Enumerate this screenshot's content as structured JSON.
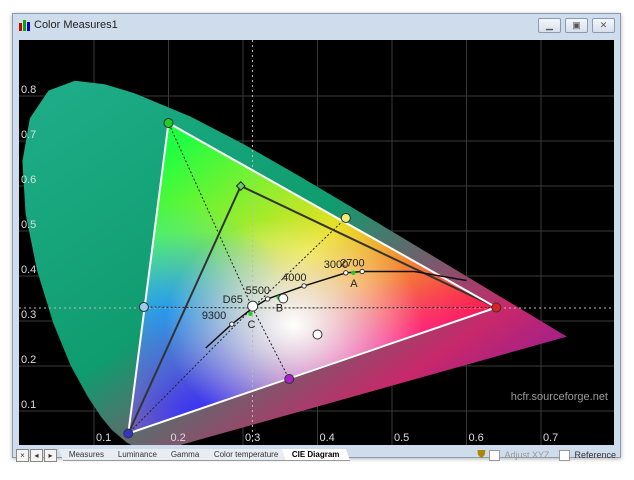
{
  "window": {
    "title": "Color Measures1",
    "controls": [
      "minimize",
      "maximize",
      "close"
    ]
  },
  "tabs": [
    {
      "label": "Measures"
    },
    {
      "label": "Luminance"
    },
    {
      "label": "Gamma"
    },
    {
      "label": "Color temperature"
    },
    {
      "label": "CIE Diagram",
      "active": true
    }
  ],
  "nav_buttons": [
    "×",
    "◂",
    "▸"
  ],
  "options": {
    "adjust_xyz": "Adjust XYZ",
    "reference": "Reference"
  },
  "watermark": "hcfr.sourceforge.net",
  "colors": {
    "background": "#000000",
    "grid": "#3a3a3a",
    "reference_gamut": "#ffffff",
    "measured_gamut": "#333333"
  },
  "chart_data": {
    "type": "scatter",
    "xlim": [
      0,
      0.8
    ],
    "ylim": [
      0,
      0.89
    ],
    "grid": true,
    "x_ticks": [
      "0.1",
      "0.2",
      "0.3",
      "0.4",
      "0.5",
      "0.6",
      "0.7"
    ],
    "y_ticks": [
      "0.1",
      "0.2",
      "0.3",
      "0.4",
      "0.5",
      "0.6",
      "0.7",
      "0.8"
    ],
    "spectral_locus": [
      [
        0.1741,
        0.005
      ],
      [
        0.144,
        0.0297
      ],
      [
        0.1241,
        0.0578
      ],
      [
        0.1096,
        0.0868
      ],
      [
        0.0913,
        0.1327
      ],
      [
        0.0687,
        0.2007
      ],
      [
        0.0454,
        0.295
      ],
      [
        0.0235,
        0.4127
      ],
      [
        0.0082,
        0.5384
      ],
      [
        0.0039,
        0.6548
      ],
      [
        0.0139,
        0.7502
      ],
      [
        0.0389,
        0.812
      ],
      [
        0.0743,
        0.8338
      ],
      [
        0.1142,
        0.8262
      ],
      [
        0.1547,
        0.8059
      ],
      [
        0.2296,
        0.7543
      ],
      [
        0.3016,
        0.6923
      ],
      [
        0.3731,
        0.6245
      ],
      [
        0.4441,
        0.5547
      ],
      [
        0.5125,
        0.4866
      ],
      [
        0.5752,
        0.4242
      ],
      [
        0.627,
        0.3725
      ],
      [
        0.6915,
        0.3083
      ],
      [
        0.719,
        0.2809
      ],
      [
        0.7347,
        0.2653
      ]
    ],
    "reference_gamut": {
      "red": [
        0.64,
        0.33
      ],
      "green": [
        0.2,
        0.74
      ],
      "blue": [
        0.146,
        0.05
      ]
    },
    "measured_gamut": {
      "red": [
        0.64,
        0.33
      ],
      "green": [
        0.297,
        0.6
      ],
      "blue": [
        0.146,
        0.05
      ]
    },
    "secondaries": {
      "cyan": [
        0.167,
        0.331
      ],
      "yellow": [
        0.438,
        0.529
      ],
      "magenta": [
        0.362,
        0.171
      ]
    },
    "white_point": [
      0.3127,
      0.329
    ],
    "planckian_locus": [
      [
        0.25,
        0.24
      ],
      [
        0.285,
        0.293
      ],
      [
        0.313,
        0.329
      ],
      [
        0.333,
        0.349
      ],
      [
        0.382,
        0.378
      ],
      [
        0.438,
        0.407
      ],
      [
        0.46,
        0.41
      ],
      [
        0.53,
        0.41
      ],
      [
        0.6,
        0.39
      ]
    ],
    "temperature_labels": [
      {
        "label": "9300",
        "x": 0.285,
        "y": 0.293
      },
      {
        "label": "D65",
        "x": 0.313,
        "y": 0.329
      },
      {
        "label": "5500",
        "x": 0.333,
        "y": 0.349
      },
      {
        "label": "4000",
        "x": 0.382,
        "y": 0.378
      },
      {
        "label": "3000",
        "x": 0.438,
        "y": 0.407
      },
      {
        "label": "2700",
        "x": 0.46,
        "y": 0.41
      }
    ],
    "illuminants": [
      {
        "label": "A",
        "x": 0.448,
        "y": 0.407
      },
      {
        "label": "B",
        "x": 0.348,
        "y": 0.352
      },
      {
        "label": "C",
        "x": 0.31,
        "y": 0.316
      }
    ],
    "measured_points": [
      [
        0.313,
        0.333
      ],
      [
        0.354,
        0.35
      ],
      [
        0.4,
        0.27
      ]
    ]
  }
}
